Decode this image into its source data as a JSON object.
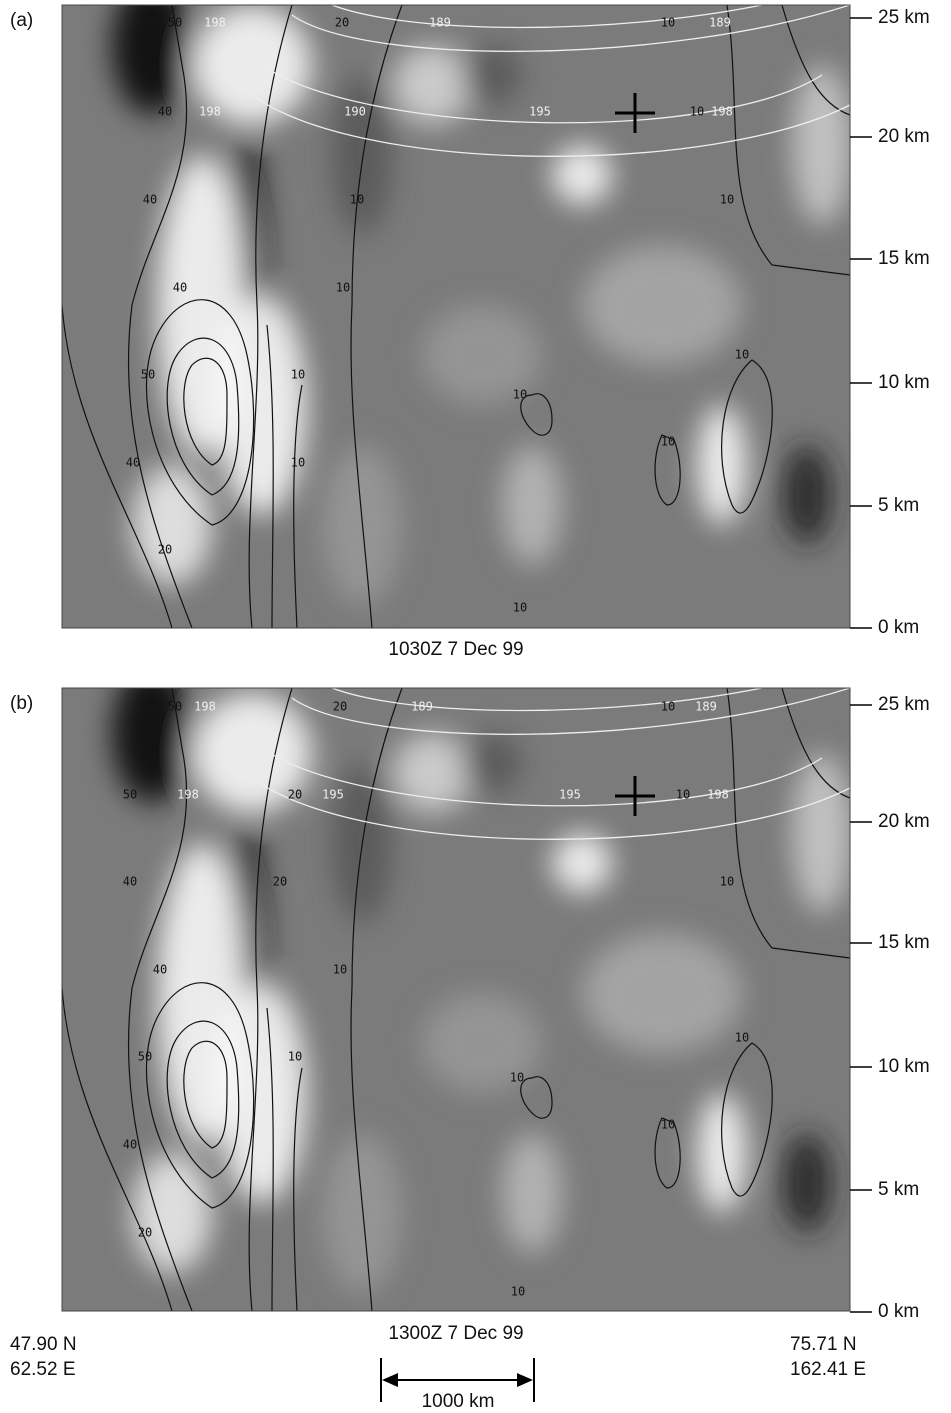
{
  "panels": [
    {
      "label": "(a)",
      "caption": "1030Z  7 Dec 99",
      "altitude_ticks": [
        "25 km",
        "20 km",
        "15 km",
        "10 km",
        "5 km",
        "0 km"
      ],
      "contour_labels": [
        "50",
        "198",
        "20",
        "189",
        "10",
        "189",
        "40",
        "198",
        "190",
        "195",
        "10",
        "198",
        "40",
        "10",
        "10",
        "40",
        "10",
        "50",
        "10",
        "10",
        "10",
        "10",
        "40",
        "10",
        "20",
        "10"
      ]
    },
    {
      "label": "(b)",
      "caption": "1300Z  7 Dec 99",
      "altitude_ticks": [
        "25 km",
        "20 km",
        "15 km",
        "10 km",
        "5 km",
        "0 km"
      ],
      "contour_labels": [
        "50",
        "198",
        "20",
        "189",
        "10",
        "189",
        "50",
        "198",
        "20",
        "195",
        "195",
        "10",
        "198",
        "40",
        "20",
        "10",
        "40",
        "10",
        "50",
        "10",
        "10",
        "10",
        "10",
        "40",
        "20",
        "10"
      ]
    }
  ],
  "start_point": {
    "lat": "47.90 N",
    "lon": "62.52 E"
  },
  "end_point": {
    "lat": "75.71 N",
    "lon": "162.41 E"
  },
  "scale_bar": "1000 km"
}
